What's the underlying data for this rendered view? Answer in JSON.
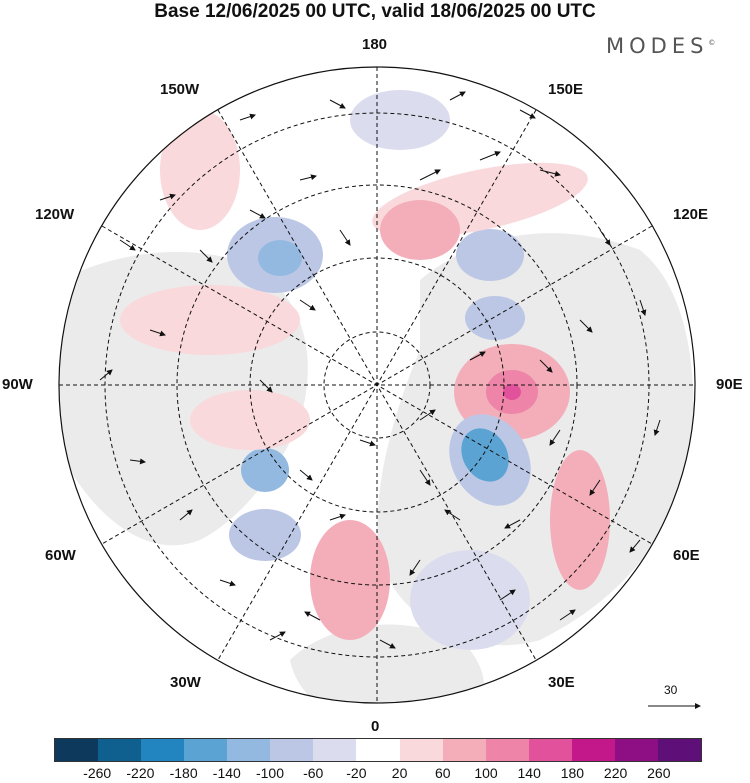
{
  "title": "Base 12/06/2025 00 UTC, valid 18/06/2025 00 UTC",
  "logo": "MODES",
  "logo_mark": "©",
  "longitude_labels": {
    "lon_180": "180",
    "lon_150W": "150W",
    "lon_150E": "150E",
    "lon_120W": "120W",
    "lon_120E": "120E",
    "lon_90W": "90W",
    "lon_90E": "90E",
    "lon_60W": "60W",
    "lon_60E": "60E",
    "lon_30W": "30W",
    "lon_30E": "30E",
    "lon_0": "0"
  },
  "reference_vector": "30",
  "colorbar": {
    "colors": [
      "#0d3a5c",
      "#0f5f8f",
      "#2385bf",
      "#5ba3d3",
      "#93b9e0",
      "#bcc7e6",
      "#dcdcef",
      "#ffffff",
      "#f9d9dc",
      "#f4aeb9",
      "#ee85a8",
      "#e2519b",
      "#c2188a",
      "#8e0e84",
      "#5e0f78"
    ],
    "ticks": [
      "-260",
      "-220",
      "-180",
      "-140",
      "-100",
      "-60",
      "-20",
      "20",
      "60",
      "100",
      "140",
      "180",
      "220",
      "260"
    ]
  },
  "anomaly_colors": {
    "land": "#ebebeb",
    "neg_weak": "#dcdcef",
    "neg_mid": "#bcc7e6",
    "neg_strong": "#5ba3d3",
    "pos_weak": "#f9d9dc",
    "pos_mid": "#f4aeb9",
    "pos_strong": "#e2519b"
  }
}
